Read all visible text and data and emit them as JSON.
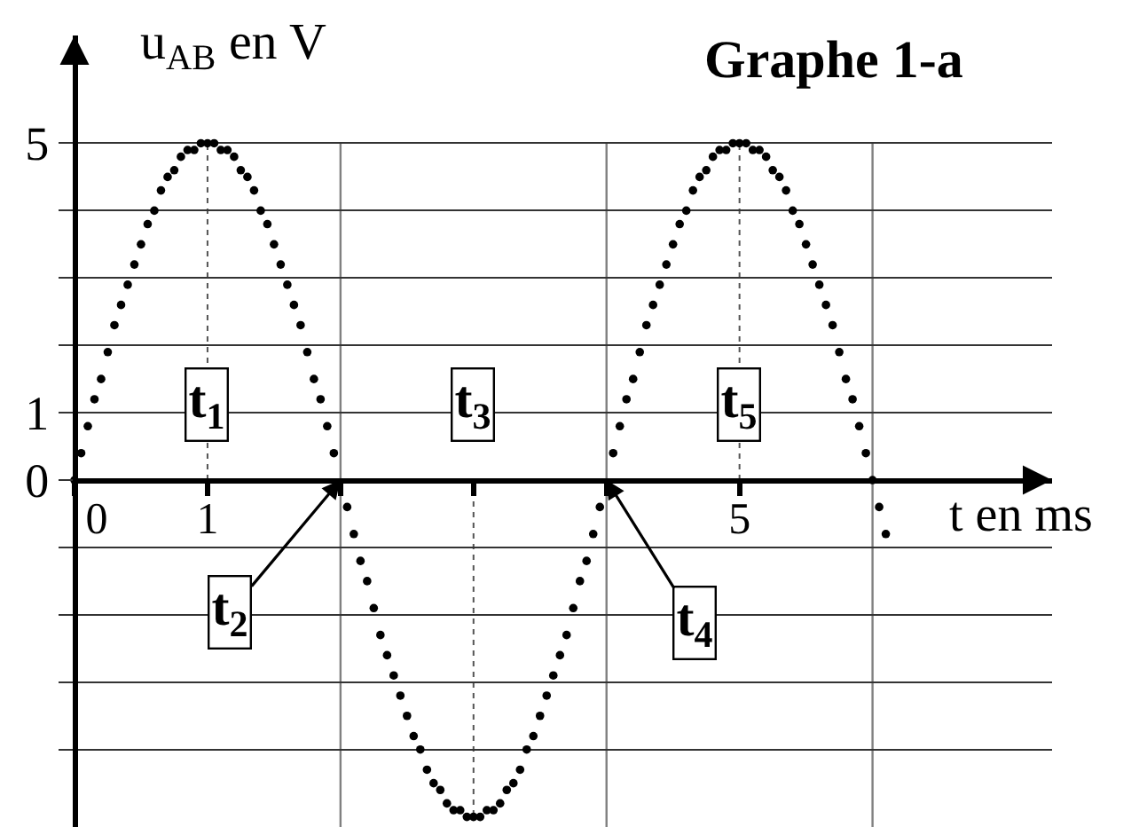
{
  "chart_data": {
    "type": "scatter",
    "title": "Graphe 1-a",
    "xlabel": "t en ms",
    "ylabel": "u$_{AB}$ en V",
    "x": [
      0,
      0.05,
      0.1,
      0.15,
      0.2,
      0.25,
      0.3,
      0.35,
      0.4,
      0.45,
      0.5,
      0.55,
      0.6,
      0.65,
      0.7,
      0.75,
      0.8,
      0.85,
      0.9,
      0.95,
      1,
      1.05,
      1.1,
      1.15,
      1.2,
      1.25,
      1.3,
      1.35,
      1.4,
      1.45,
      1.5,
      1.55,
      1.6,
      1.65,
      1.7,
      1.75,
      1.8,
      1.85,
      1.9,
      1.95,
      2,
      2.05,
      2.1,
      2.15,
      2.2,
      2.25,
      2.3,
      2.35,
      2.4,
      2.45,
      2.5,
      2.55,
      2.6,
      2.65,
      2.7,
      2.75,
      2.8,
      2.85,
      2.9,
      2.95,
      3,
      3.05,
      3.1,
      3.15,
      3.2,
      3.25,
      3.3,
      3.35,
      3.4,
      3.45,
      3.5,
      3.55,
      3.6,
      3.65,
      3.7,
      3.75,
      3.8,
      3.85,
      3.9,
      3.95,
      4,
      4.05,
      4.1,
      4.15,
      4.2,
      4.25,
      4.3,
      4.35,
      4.4,
      4.45,
      4.5,
      4.55,
      4.6,
      4.65,
      4.7,
      4.75,
      4.8,
      4.85,
      4.9,
      4.95,
      5,
      5.05,
      5.1,
      5.15,
      5.2,
      5.25,
      5.3,
      5.35,
      5.4,
      5.45,
      5.5,
      5.55,
      5.6,
      5.65,
      5.7,
      5.75,
      5.8,
      5.85,
      5.9,
      5.95,
      6,
      6.05,
      6.1
    ],
    "series": [
      {
        "color": "#000000",
        "values": [
          0,
          0.4,
          0.8,
          1.2,
          1.5,
          1.9,
          2.3,
          2.6,
          2.9,
          3.2,
          3.5,
          3.8,
          4.0,
          4.3,
          4.5,
          4.6,
          4.8,
          4.9,
          4.9,
          5.0,
          5.0,
          5.0,
          4.9,
          4.9,
          4.8,
          4.6,
          4.5,
          4.3,
          4.0,
          3.8,
          3.5,
          3.2,
          2.9,
          2.6,
          2.3,
          1.9,
          1.5,
          1.2,
          0.8,
          0.4,
          null,
          -0.4,
          -0.8,
          -1.2,
          -1.5,
          -1.9,
          -2.3,
          -2.6,
          -2.9,
          -3.2,
          -3.5,
          -3.8,
          -4.0,
          -4.3,
          -4.5,
          -4.6,
          -4.8,
          -4.9,
          -4.9,
          -5.0,
          -5.0,
          -5.0,
          -4.9,
          -4.9,
          -4.8,
          -4.6,
          -4.5,
          -4.3,
          -4.0,
          -3.8,
          -3.5,
          -3.2,
          -2.9,
          -2.6,
          -2.3,
          -1.9,
          -1.5,
          -1.2,
          -0.8,
          -0.4,
          null,
          0.4,
          0.8,
          1.2,
          1.5,
          1.9,
          2.3,
          2.6,
          2.9,
          3.2,
          3.5,
          3.8,
          4.0,
          4.3,
          4.5,
          4.6,
          4.8,
          4.9,
          4.9,
          5.0,
          5.0,
          5.0,
          4.9,
          4.9,
          4.8,
          4.6,
          4.5,
          4.3,
          4.0,
          3.8,
          3.5,
          3.2,
          2.9,
          2.6,
          2.3,
          1.9,
          1.5,
          1.2,
          0.8,
          0.4,
          0,
          -0.4,
          -0.8
        ]
      }
    ],
    "marker": "circle",
    "xlim": [
      0,
      7.35
    ],
    "ylim": [
      -5.15,
      6.6
    ],
    "xticks": [
      0,
      1,
      {
        "value": 2,
        "label": null
      },
      {
        "value": 3,
        "label": null
      },
      {
        "value": 4,
        "label": null
      },
      5
    ],
    "yticks": [
      {
        "value": -4,
        "label": null
      },
      {
        "value": -3,
        "label": null
      },
      {
        "value": -2,
        "label": null
      },
      {
        "value": -1,
        "label": null
      },
      0,
      1,
      {
        "value": 2,
        "label": null
      },
      {
        "value": 3,
        "label": null
      },
      {
        "value": 4,
        "label": null
      },
      5
    ],
    "grid": "y",
    "ref_lines": [
      {
        "axis": "x",
        "value": 2,
        "color": "#808080"
      },
      {
        "axis": "x",
        "value": 4,
        "color": "#808080"
      },
      {
        "axis": "x",
        "value": 6,
        "color": "#808080"
      }
    ],
    "annotations": [
      {
        "text": "t$_{1}$",
        "x": 1,
        "y": 5
      },
      {
        "text": "t$_{2}$",
        "x": 2,
        "y": 0
      },
      {
        "text": "t$_{3}$",
        "x": 3,
        "y": -5
      },
      {
        "text": "t$_{4}$",
        "x": 4,
        "y": 0
      },
      {
        "text": "t$_{5}$",
        "x": 5,
        "y": 5
      }
    ]
  }
}
